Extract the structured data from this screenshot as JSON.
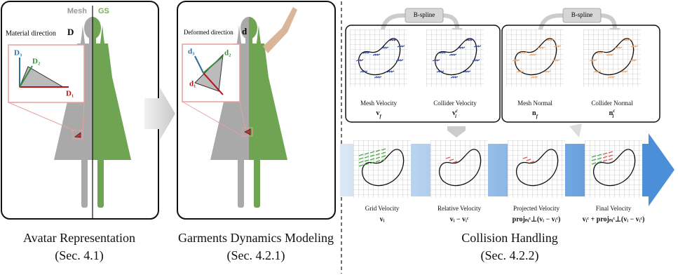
{
  "avatar": {
    "mesh_label": "Mesh",
    "gs_label": "GS",
    "direction_label": "Material direction",
    "direction_symbol": "D",
    "axes": [
      "D₃",
      "D₂",
      "D₁"
    ],
    "caption": "Avatar Representation",
    "section": "(Sec. 4.1)"
  },
  "dynamics": {
    "direction_label": "Deformed direction",
    "direction_symbol": "d",
    "axes": [
      "d₃",
      "d₂",
      "d₁"
    ],
    "caption": "Garments Dynamics Modeling",
    "section": "(Sec. 4.2.1)"
  },
  "collision": {
    "bspline_labels": [
      "B-spline",
      "B-spline"
    ],
    "top": [
      {
        "label": "Mesh Velocity",
        "symbol": "v",
        "subscript": "f"
      },
      {
        "label": "Collider Velocity",
        "symbol": "v",
        "subscript": "i",
        "superscript": "c"
      },
      {
        "label": "Mesh Normal",
        "symbol": "n",
        "subscript": "f"
      },
      {
        "label": "Collider Normal",
        "symbol": "n",
        "subscript": "i",
        "superscript": "c"
      }
    ],
    "bottom": [
      {
        "label": "Grid Velocity",
        "formula": "vᵢ"
      },
      {
        "label": "Relative Velocity",
        "formula": "vᵢ − vᵢᶜ"
      },
      {
        "label": "Projected Velocity",
        "formula": "projₙᵢᶜ⊥(vᵢ − vᵢᶜ)"
      },
      {
        "label": "Final Velocity",
        "formula": "vᵢᶜ + projₙᵢᶜ⊥(vᵢ − vᵢᶜ)"
      }
    ],
    "caption": "Collision Handling",
    "section": "(Sec. 4.2.2)"
  }
}
